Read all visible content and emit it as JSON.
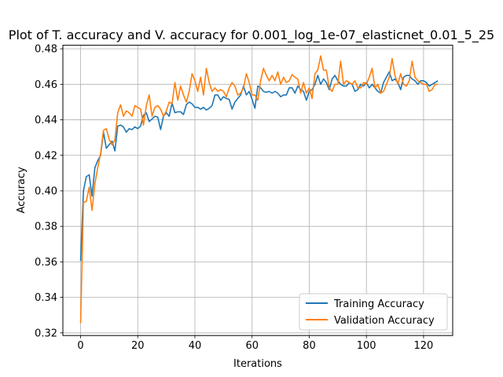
{
  "chart_data": {
    "type": "line",
    "title": "Plot of T. accuracy and V. accuracy for 0.001_log_1e-07_elasticnet_0.01_5_25",
    "xlabel": "Iterations",
    "ylabel": "Accuracy",
    "xlim": [
      -6.2,
      130.2
    ],
    "ylim": [
      0.3185,
      0.482
    ],
    "xticks": [
      0,
      20,
      40,
      60,
      80,
      100,
      120
    ],
    "yticks": [
      0.32,
      0.34,
      0.36,
      0.38,
      0.4,
      0.42,
      0.44,
      0.46,
      0.48
    ],
    "xtick_labels": [
      "0",
      "20",
      "40",
      "60",
      "80",
      "100",
      "120"
    ],
    "ytick_labels": [
      "0.32",
      "0.34",
      "0.36",
      "0.38",
      "0.40",
      "0.42",
      "0.44",
      "0.46",
      "0.48"
    ],
    "grid": true,
    "legend_position": "lower-right",
    "series": [
      {
        "name": "Training Accuracy",
        "color": "#1f77b4",
        "values": [
          0.3605,
          0.4,
          0.408,
          0.409,
          0.397,
          0.413,
          0.417,
          0.42,
          0.433,
          0.424,
          0.426,
          0.428,
          0.4225,
          0.4365,
          0.437,
          0.436,
          0.433,
          0.435,
          0.4345,
          0.436,
          0.435,
          0.4365,
          0.4425,
          0.444,
          0.439,
          0.4405,
          0.442,
          0.4415,
          0.4345,
          0.442,
          0.444,
          0.442,
          0.4495,
          0.444,
          0.4445,
          0.4445,
          0.443,
          0.4485,
          0.45,
          0.449,
          0.447,
          0.447,
          0.446,
          0.447,
          0.4455,
          0.4465,
          0.448,
          0.454,
          0.454,
          0.451,
          0.453,
          0.452,
          0.4515,
          0.446,
          0.45,
          0.452,
          0.454,
          0.459,
          0.454,
          0.456,
          0.4515,
          0.4465,
          0.459,
          0.458,
          0.456,
          0.4555,
          0.456,
          0.455,
          0.456,
          0.455,
          0.453,
          0.454,
          0.454,
          0.458,
          0.458,
          0.455,
          0.459,
          0.457,
          0.456,
          0.451,
          0.456,
          0.457,
          0.46,
          0.465,
          0.46,
          0.463,
          0.461,
          0.457,
          0.463,
          0.465,
          0.462,
          0.46,
          0.459,
          0.459,
          0.461,
          0.46,
          0.456,
          0.457,
          0.46,
          0.459,
          0.461,
          0.458,
          0.46,
          0.458,
          0.456,
          0.455,
          0.461,
          0.464,
          0.467,
          0.462,
          0.463,
          0.461,
          0.457,
          0.464,
          0.465,
          0.465,
          0.463,
          0.462,
          0.46,
          0.462,
          0.462,
          0.461,
          0.459,
          0.46,
          0.461,
          0.462
        ]
      },
      {
        "name": "Validation Accuracy",
        "color": "#ff7f0e",
        "values": [
          0.3255,
          0.3935,
          0.394,
          0.402,
          0.389,
          0.404,
          0.413,
          0.421,
          0.434,
          0.435,
          0.429,
          0.426,
          0.4285,
          0.444,
          0.4485,
          0.442,
          0.445,
          0.444,
          0.442,
          0.448,
          0.447,
          0.446,
          0.437,
          0.448,
          0.454,
          0.442,
          0.447,
          0.448,
          0.446,
          0.442,
          0.445,
          0.45,
          0.449,
          0.461,
          0.451,
          0.459,
          0.454,
          0.45,
          0.456,
          0.466,
          0.462,
          0.456,
          0.464,
          0.454,
          0.469,
          0.461,
          0.456,
          0.458,
          0.456,
          0.457,
          0.456,
          0.453,
          0.458,
          0.461,
          0.459,
          0.454,
          0.455,
          0.458,
          0.466,
          0.461,
          0.454,
          0.454,
          0.451,
          0.462,
          0.469,
          0.465,
          0.462,
          0.465,
          0.462,
          0.467,
          0.46,
          0.464,
          0.461,
          0.462,
          0.4655,
          0.464,
          0.463,
          0.455,
          0.461,
          0.455,
          0.458,
          0.452,
          0.466,
          0.468,
          0.476,
          0.468,
          0.468,
          0.458,
          0.456,
          0.46,
          0.46,
          0.473,
          0.46,
          0.462,
          0.461,
          0.46,
          0.462,
          0.458,
          0.458,
          0.461,
          0.46,
          0.464,
          0.469,
          0.458,
          0.46,
          0.455,
          0.456,
          0.46,
          0.464,
          0.4745,
          0.465,
          0.46,
          0.466,
          0.46,
          0.459,
          0.462,
          0.473,
          0.464,
          0.462,
          0.461,
          0.46,
          0.46,
          0.456,
          0.457,
          0.46,
          0.46
        ]
      }
    ]
  }
}
